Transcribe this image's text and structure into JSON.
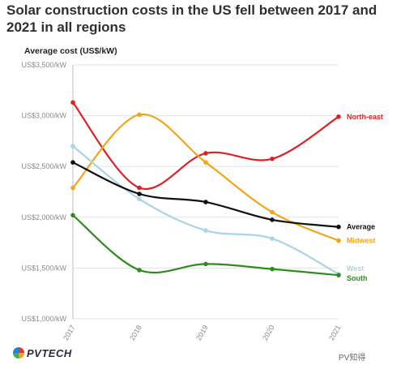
{
  "chart_data": {
    "type": "line",
    "title": "Solar construction costs in the US fell between 2017 and 2021 in all regions",
    "ylabel": "Average cost (US$/kW)",
    "xlabel": "",
    "x": [
      "2017",
      "2018",
      "2019",
      "2020",
      "2021"
    ],
    "ylim": [
      1000,
      3500
    ],
    "yticks": [
      1000,
      1500,
      2000,
      2500,
      3000,
      3500
    ],
    "ytick_labels": [
      "US$1,000/kW",
      "US$1,500/kW",
      "US$2,000/kW",
      "US$2,500/kW",
      "US$3,000/kW",
      "US$3,500/kW"
    ],
    "grid": "horizontal",
    "legend": "labels at line ends",
    "series": [
      {
        "name": "North-east",
        "color": "#e02020",
        "values": [
          3130,
          2290,
          2630,
          2575,
          2990
        ]
      },
      {
        "name": "Midwest",
        "color": "#f2a516",
        "values": [
          2290,
          3010,
          2540,
          2050,
          1770
        ]
      },
      {
        "name": "West",
        "color": "#a8d4e6",
        "values": [
          2700,
          2180,
          1870,
          1790,
          1440
        ]
      },
      {
        "name": "Average",
        "color": "#111111",
        "values": [
          2540,
          2230,
          2150,
          1975,
          1905
        ]
      },
      {
        "name": "South",
        "color": "#2e8b1e",
        "values": [
          2020,
          1480,
          1540,
          1490,
          1430
        ]
      }
    ]
  },
  "branding": {
    "logo_text": "PVTECH",
    "watermark": "PV知得"
  }
}
